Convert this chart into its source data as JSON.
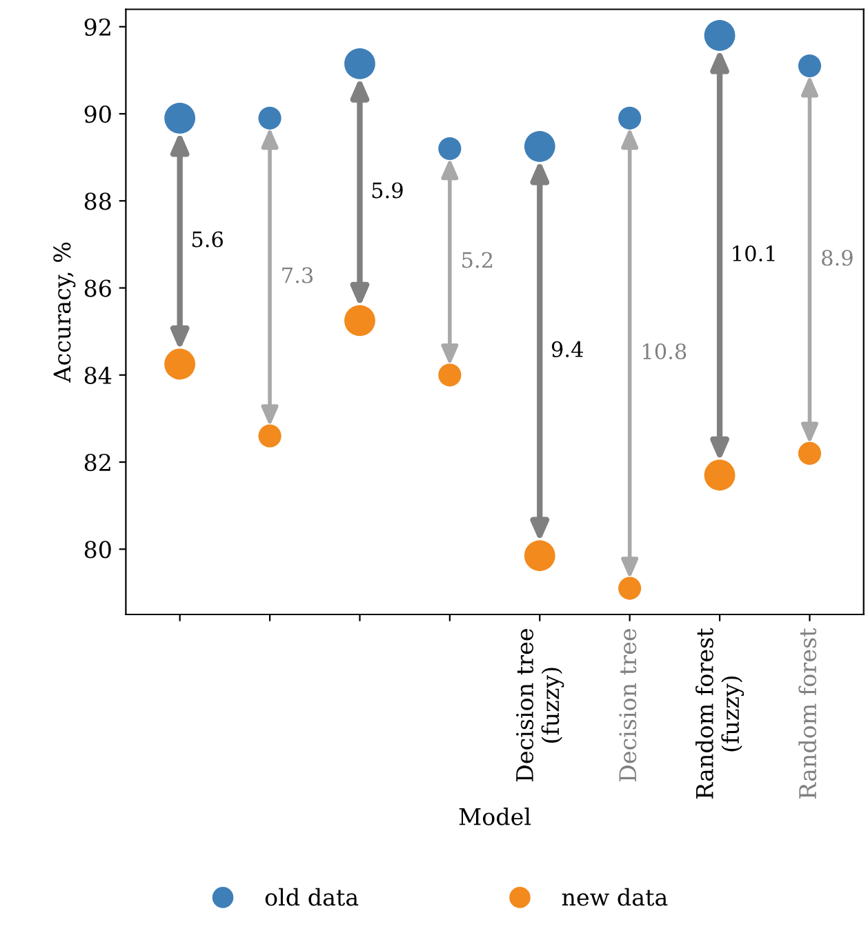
{
  "chart_data": {
    "type": "bubble",
    "xlabel": "Model",
    "ylabel": "Accuracy, %",
    "categories": [
      null,
      null,
      null,
      null,
      "Decision tree\n(fuzzy)",
      "Decision tree",
      "Random forest\n(fuzzy)",
      "Random forest"
    ],
    "series": [
      {
        "name": "old data",
        "color": "#3f7fb8",
        "values": [
          89.9,
          89.9,
          91.15,
          89.2,
          89.25,
          89.9,
          91.8,
          91.1
        ],
        "sizes": [
          1,
          0.55,
          1,
          0.55,
          1,
          0.55,
          1,
          0.55
        ]
      },
      {
        "name": "new data",
        "color": "#f28a1e",
        "values": [
          84.25,
          82.6,
          85.25,
          84.0,
          79.85,
          79.1,
          81.7,
          82.2
        ],
        "sizes": [
          1,
          0.55,
          1,
          0.55,
          1,
          0.55,
          1,
          0.55
        ]
      }
    ],
    "annotations": [
      "5.6",
      "7.3",
      "5.9",
      "5.2",
      "9.4",
      "10.8",
      "10.1",
      "8.9"
    ],
    "ylim": [
      78.5,
      92.4
    ],
    "yticks": [
      80,
      82,
      84,
      86,
      88,
      90,
      92
    ],
    "grid": false,
    "legend": "bottom"
  }
}
